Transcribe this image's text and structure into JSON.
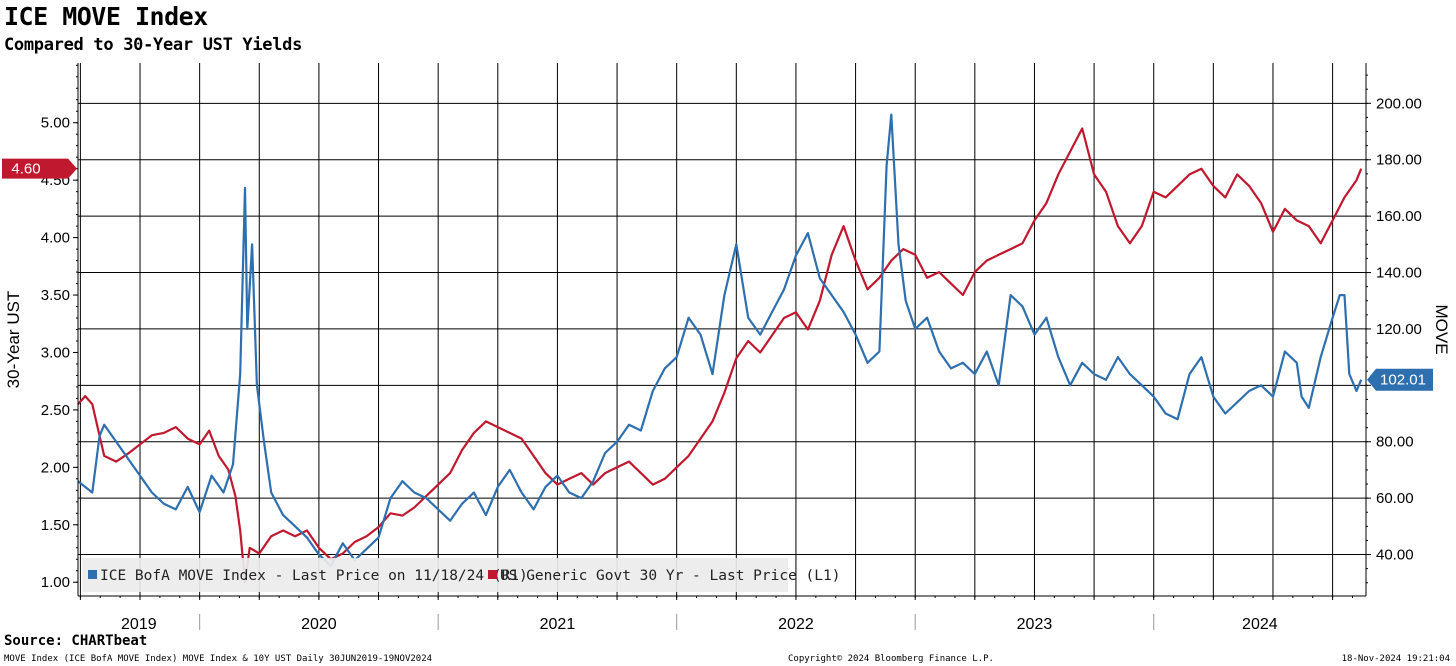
{
  "header": {
    "title": "ICE MOVE Index",
    "subtitle": "Compared to 30-Year UST Yields"
  },
  "footer": {
    "source": "Source: CHARTbeat",
    "description": "MOVE Index (ICE BofA MOVE Index) MOVE Index & 10Y UST  Daily 30JUN2019-19NOV2024",
    "copyright": "Copyright© 2024 Bloomberg Finance L.P.",
    "timestamp": "18-Nov-2024 19:21:04"
  },
  "colors": {
    "move": "#2E6FAF",
    "ust30": "#C0192F"
  },
  "chart_data": {
    "type": "line",
    "title": "ICE MOVE Index",
    "subtitle": "Compared to 30-Year UST Yields",
    "xlabel": "",
    "ylabel_left": "30-Year UST",
    "ylabel_right": "MOVE",
    "x_range": [
      2019.49,
      2024.89
    ],
    "ylim_left": [
      0.88,
      5.52
    ],
    "ylim_right": [
      25.3,
      214.3
    ],
    "left_ticks": [
      "1.00",
      "1.50",
      "2.00",
      "2.50",
      "3.00",
      "3.50",
      "4.00",
      "4.50",
      "5.00"
    ],
    "right_ticks": [
      "40.00",
      "60.00",
      "80.00",
      "100.00",
      "120.00",
      "140.00",
      "160.00",
      "180.00",
      "200.00"
    ],
    "year_labels": [
      "2019",
      "2020",
      "2021",
      "2022",
      "2023",
      "2024"
    ],
    "grid": true,
    "legend_position": "bottom-left",
    "last_value_labels": {
      "left": "4.60",
      "right": "102.01"
    },
    "series": [
      {
        "name": "ICE BofA MOVE Index - Last Price on 11/18/24 (R1)",
        "axis": "right",
        "x": [
          2019.49,
          2019.55,
          2019.58,
          2019.6,
          2019.65,
          2019.7,
          2019.75,
          2019.8,
          2019.85,
          2019.9,
          2019.95,
          2020.0,
          2020.05,
          2020.1,
          2020.14,
          2020.17,
          2020.19,
          2020.2,
          2020.22,
          2020.24,
          2020.27,
          2020.3,
          2020.35,
          2020.4,
          2020.45,
          2020.5,
          2020.55,
          2020.6,
          2020.65,
          2020.7,
          2020.75,
          2020.8,
          2020.85,
          2020.9,
          2020.95,
          2021.0,
          2021.05,
          2021.1,
          2021.15,
          2021.2,
          2021.25,
          2021.3,
          2021.35,
          2021.4,
          2021.45,
          2021.5,
          2021.55,
          2021.6,
          2021.65,
          2021.7,
          2021.75,
          2021.8,
          2021.85,
          2021.9,
          2021.95,
          2022.0,
          2022.05,
          2022.1,
          2022.15,
          2022.2,
          2022.25,
          2022.3,
          2022.35,
          2022.4,
          2022.45,
          2022.5,
          2022.55,
          2022.6,
          2022.65,
          2022.7,
          2022.75,
          2022.8,
          2022.85,
          2022.88,
          2022.9,
          2022.93,
          2022.96,
          2023.0,
          2023.05,
          2023.1,
          2023.15,
          2023.2,
          2023.25,
          2023.3,
          2023.35,
          2023.4,
          2023.45,
          2023.5,
          2023.55,
          2023.6,
          2023.65,
          2023.7,
          2023.75,
          2023.8,
          2023.85,
          2023.9,
          2023.95,
          2024.0,
          2024.05,
          2024.1,
          2024.15,
          2024.2,
          2024.25,
          2024.3,
          2024.35,
          2024.4,
          2024.45,
          2024.5,
          2024.55,
          2024.6,
          2024.62,
          2024.65,
          2024.7,
          2024.75,
          2024.78,
          2024.8,
          2024.82,
          2024.85,
          2024.87
        ],
        "y": [
          66,
          62,
          82,
          86,
          80,
          74,
          68,
          62,
          58,
          56,
          64,
          55,
          68,
          62,
          72,
          104,
          170,
          120,
          150,
          100,
          80,
          62,
          54,
          50,
          46,
          40,
          36,
          44,
          38,
          42,
          46,
          60,
          66,
          62,
          60,
          56,
          52,
          58,
          62,
          54,
          64,
          70,
          62,
          56,
          64,
          68,
          62,
          60,
          66,
          76,
          80,
          86,
          84,
          98,
          106,
          110,
          124,
          118,
          104,
          132,
          150,
          124,
          118,
          126,
          134,
          146,
          154,
          138,
          132,
          126,
          118,
          108,
          112,
          178,
          196,
          150,
          130,
          120,
          124,
          112,
          106,
          108,
          104,
          112,
          100,
          132,
          128,
          118,
          124,
          110,
          100,
          108,
          104,
          102,
          110,
          104,
          100,
          96,
          90,
          88,
          104,
          110,
          96,
          90,
          94,
          98,
          100,
          96,
          112,
          108,
          96,
          92,
          110,
          124,
          132,
          132,
          104,
          98,
          102
        ]
      },
      {
        "name": "US Generic Govt 30 Yr - Last Price (L1)",
        "axis": "left",
        "x": [
          2019.49,
          2019.52,
          2019.55,
          2019.6,
          2019.65,
          2019.7,
          2019.75,
          2019.8,
          2019.85,
          2019.9,
          2019.95,
          2020.0,
          2020.04,
          2020.08,
          2020.12,
          2020.15,
          2020.17,
          2020.19,
          2020.21,
          2020.25,
          2020.3,
          2020.35,
          2020.4,
          2020.45,
          2020.5,
          2020.55,
          2020.6,
          2020.65,
          2020.7,
          2020.75,
          2020.8,
          2020.85,
          2020.9,
          2020.95,
          2021.0,
          2021.05,
          2021.1,
          2021.15,
          2021.2,
          2021.25,
          2021.3,
          2021.35,
          2021.4,
          2021.45,
          2021.5,
          2021.55,
          2021.6,
          2021.65,
          2021.7,
          2021.75,
          2021.8,
          2021.85,
          2021.9,
          2021.95,
          2022.0,
          2022.05,
          2022.1,
          2022.15,
          2022.2,
          2022.25,
          2022.3,
          2022.35,
          2022.4,
          2022.45,
          2022.5,
          2022.55,
          2022.6,
          2022.65,
          2022.7,
          2022.75,
          2022.8,
          2022.85,
          2022.9,
          2022.95,
          2023.0,
          2023.05,
          2023.1,
          2023.15,
          2023.2,
          2023.25,
          2023.3,
          2023.35,
          2023.4,
          2023.45,
          2023.5,
          2023.55,
          2023.6,
          2023.65,
          2023.7,
          2023.75,
          2023.8,
          2023.85,
          2023.9,
          2023.95,
          2024.0,
          2024.05,
          2024.1,
          2024.15,
          2024.2,
          2024.25,
          2024.3,
          2024.35,
          2024.4,
          2024.45,
          2024.5,
          2024.55,
          2024.6,
          2024.65,
          2024.7,
          2024.75,
          2024.8,
          2024.85,
          2024.87
        ],
        "y": [
          2.55,
          2.62,
          2.55,
          2.1,
          2.05,
          2.12,
          2.2,
          2.28,
          2.3,
          2.35,
          2.25,
          2.2,
          2.32,
          2.1,
          1.98,
          1.75,
          1.45,
          1.0,
          1.3,
          1.25,
          1.4,
          1.45,
          1.4,
          1.45,
          1.3,
          1.2,
          1.25,
          1.35,
          1.4,
          1.48,
          1.6,
          1.58,
          1.65,
          1.75,
          1.85,
          1.95,
          2.15,
          2.3,
          2.4,
          2.35,
          2.3,
          2.25,
          2.1,
          1.95,
          1.85,
          1.9,
          1.95,
          1.85,
          1.95,
          2.0,
          2.05,
          1.95,
          1.85,
          1.9,
          2.0,
          2.1,
          2.25,
          2.4,
          2.65,
          2.95,
          3.1,
          3.0,
          3.15,
          3.3,
          3.35,
          3.2,
          3.45,
          3.85,
          4.1,
          3.8,
          3.55,
          3.65,
          3.8,
          3.9,
          3.85,
          3.65,
          3.7,
          3.6,
          3.5,
          3.7,
          3.8,
          3.85,
          3.9,
          3.95,
          4.15,
          4.3,
          4.55,
          4.75,
          4.95,
          4.55,
          4.4,
          4.1,
          3.95,
          4.1,
          4.4,
          4.35,
          4.45,
          4.55,
          4.6,
          4.45,
          4.35,
          4.55,
          4.45,
          4.3,
          4.05,
          4.25,
          4.15,
          4.1,
          3.95,
          4.15,
          4.35,
          4.5,
          4.6
        ]
      }
    ]
  }
}
